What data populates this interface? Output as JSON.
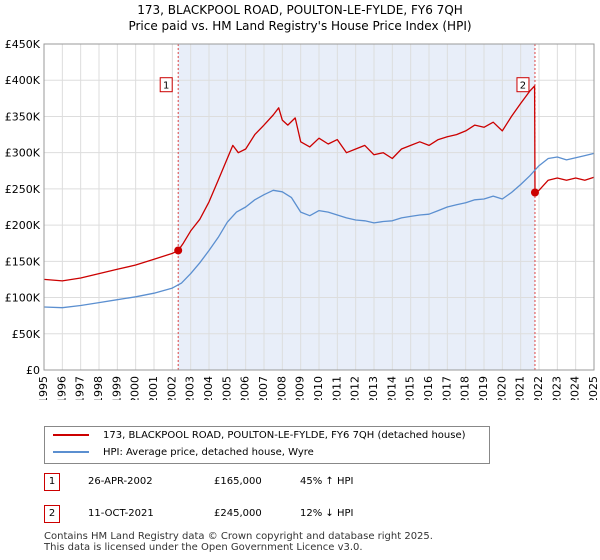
{
  "title": {
    "line1": "173, BLACKPOOL ROAD, POULTON-LE-FYLDE, FY6 7QH",
    "line2": "Price paid vs. HM Land Registry's House Price Index (HPI)"
  },
  "colors": {
    "property_line": "#cc0000",
    "hpi_line": "#5b8fd0",
    "shade": "#e8eef9",
    "grid": "#dddddd"
  },
  "chart_data": {
    "type": "line",
    "xlim": [
      1995,
      2025
    ],
    "ylim": [
      0,
      450000
    ],
    "x_ticks": [
      "1995",
      "1996",
      "1997",
      "1998",
      "1999",
      "2000",
      "2001",
      "2002",
      "2003",
      "2004",
      "2005",
      "2006",
      "2007",
      "2008",
      "2009",
      "2010",
      "2011",
      "2012",
      "2013",
      "2014",
      "2015",
      "2016",
      "2017",
      "2018",
      "2019",
      "2020",
      "2021",
      "2022",
      "2023",
      "2024",
      "2025"
    ],
    "y_ticks": [
      {
        "value": 0,
        "label": "£0"
      },
      {
        "value": 50000,
        "label": "£50K"
      },
      {
        "value": 100000,
        "label": "£100K"
      },
      {
        "value": 150000,
        "label": "£150K"
      },
      {
        "value": 200000,
        "label": "£200K"
      },
      {
        "value": 250000,
        "label": "£250K"
      },
      {
        "value": 300000,
        "label": "£300K"
      },
      {
        "value": 350000,
        "label": "£350K"
      },
      {
        "value": 400000,
        "label": "£400K"
      },
      {
        "value": 450000,
        "label": "£450K"
      }
    ],
    "shaded_period": [
      2002.32,
      2021.78
    ],
    "series": [
      {
        "name": "173, BLACKPOOL ROAD, POULTON-LE-FYLDE, FY6 7QH (detached house)",
        "color": "#cc0000",
        "points": [
          [
            1995.0,
            125000
          ],
          [
            1996.0,
            123000
          ],
          [
            1997.0,
            127000
          ],
          [
            1998.0,
            133000
          ],
          [
            1999.0,
            139000
          ],
          [
            2000.0,
            145000
          ],
          [
            2001.0,
            153000
          ],
          [
            2002.0,
            161000
          ],
          [
            2002.32,
            165000
          ],
          [
            2002.6,
            175000
          ],
          [
            2003.0,
            192000
          ],
          [
            2003.5,
            208000
          ],
          [
            2004.0,
            232000
          ],
          [
            2004.5,
            262000
          ],
          [
            2005.0,
            292000
          ],
          [
            2005.3,
            310000
          ],
          [
            2005.6,
            300000
          ],
          [
            2006.0,
            305000
          ],
          [
            2006.5,
            325000
          ],
          [
            2007.0,
            338000
          ],
          [
            2007.5,
            352000
          ],
          [
            2007.8,
            362000
          ],
          [
            2008.0,
            345000
          ],
          [
            2008.3,
            338000
          ],
          [
            2008.7,
            348000
          ],
          [
            2009.0,
            315000
          ],
          [
            2009.5,
            308000
          ],
          [
            2010.0,
            320000
          ],
          [
            2010.5,
            312000
          ],
          [
            2011.0,
            318000
          ],
          [
            2011.5,
            300000
          ],
          [
            2012.0,
            305000
          ],
          [
            2012.5,
            310000
          ],
          [
            2013.0,
            297000
          ],
          [
            2013.5,
            300000
          ],
          [
            2014.0,
            292000
          ],
          [
            2014.5,
            305000
          ],
          [
            2015.0,
            310000
          ],
          [
            2015.5,
            315000
          ],
          [
            2016.0,
            310000
          ],
          [
            2016.5,
            318000
          ],
          [
            2017.0,
            322000
          ],
          [
            2017.5,
            325000
          ],
          [
            2018.0,
            330000
          ],
          [
            2018.5,
            338000
          ],
          [
            2019.0,
            335000
          ],
          [
            2019.5,
            342000
          ],
          [
            2020.0,
            330000
          ],
          [
            2020.5,
            350000
          ],
          [
            2021.0,
            368000
          ],
          [
            2021.5,
            385000
          ],
          [
            2021.76,
            392000
          ],
          [
            2021.78,
            245000
          ],
          [
            2022.0,
            248000
          ],
          [
            2022.5,
            262000
          ],
          [
            2023.0,
            265000
          ],
          [
            2023.5,
            262000
          ],
          [
            2024.0,
            265000
          ],
          [
            2024.5,
            262000
          ],
          [
            2025.0,
            266000
          ]
        ]
      },
      {
        "name": "HPI: Average price, detached house, Wyre",
        "color": "#5b8fd0",
        "points": [
          [
            1995.0,
            87000
          ],
          [
            1996.0,
            86000
          ],
          [
            1997.0,
            89000
          ],
          [
            1998.0,
            93000
          ],
          [
            1999.0,
            97000
          ],
          [
            2000.0,
            101000
          ],
          [
            2001.0,
            106000
          ],
          [
            2002.0,
            113000
          ],
          [
            2002.5,
            120000
          ],
          [
            2003.0,
            133000
          ],
          [
            2003.5,
            148000
          ],
          [
            2004.0,
            165000
          ],
          [
            2004.5,
            183000
          ],
          [
            2005.0,
            204000
          ],
          [
            2005.5,
            218000
          ],
          [
            2006.0,
            225000
          ],
          [
            2006.5,
            235000
          ],
          [
            2007.0,
            242000
          ],
          [
            2007.5,
            248000
          ],
          [
            2008.0,
            246000
          ],
          [
            2008.5,
            238000
          ],
          [
            2009.0,
            218000
          ],
          [
            2009.5,
            213000
          ],
          [
            2010.0,
            220000
          ],
          [
            2010.5,
            218000
          ],
          [
            2011.0,
            214000
          ],
          [
            2011.5,
            210000
          ],
          [
            2012.0,
            207000
          ],
          [
            2012.5,
            206000
          ],
          [
            2013.0,
            203000
          ],
          [
            2013.5,
            205000
          ],
          [
            2014.0,
            206000
          ],
          [
            2014.5,
            210000
          ],
          [
            2015.0,
            212000
          ],
          [
            2015.5,
            214000
          ],
          [
            2016.0,
            215000
          ],
          [
            2016.5,
            220000
          ],
          [
            2017.0,
            225000
          ],
          [
            2017.5,
            228000
          ],
          [
            2018.0,
            231000
          ],
          [
            2018.5,
            235000
          ],
          [
            2019.0,
            236000
          ],
          [
            2019.5,
            240000
          ],
          [
            2020.0,
            236000
          ],
          [
            2020.5,
            245000
          ],
          [
            2021.0,
            256000
          ],
          [
            2021.5,
            268000
          ],
          [
            2022.0,
            282000
          ],
          [
            2022.5,
            292000
          ],
          [
            2023.0,
            294000
          ],
          [
            2023.5,
            290000
          ],
          [
            2024.0,
            293000
          ],
          [
            2024.5,
            296000
          ],
          [
            2025.0,
            299000
          ]
        ]
      }
    ],
    "annotations": [
      {
        "label": "1",
        "x": 2002.32,
        "y": 165000
      },
      {
        "label": "2",
        "x": 2021.78,
        "y": 245000
      }
    ]
  },
  "legend": {
    "property_label": "173, BLACKPOOL ROAD, POULTON-LE-FYLDE, FY6 7QH (detached house)",
    "hpi_label": "HPI: Average price, detached house, Wyre"
  },
  "transactions": [
    {
      "num": "1",
      "date": "26-APR-2002",
      "price": "£165,000",
      "hpi": "45% ↑ HPI"
    },
    {
      "num": "2",
      "date": "11-OCT-2021",
      "price": "£245,000",
      "hpi": "12% ↓ HPI"
    }
  ],
  "footer": {
    "line1": "Contains HM Land Registry data © Crown copyright and database right 2025.",
    "line2": "This data is licensed under the Open Government Licence v3.0."
  }
}
